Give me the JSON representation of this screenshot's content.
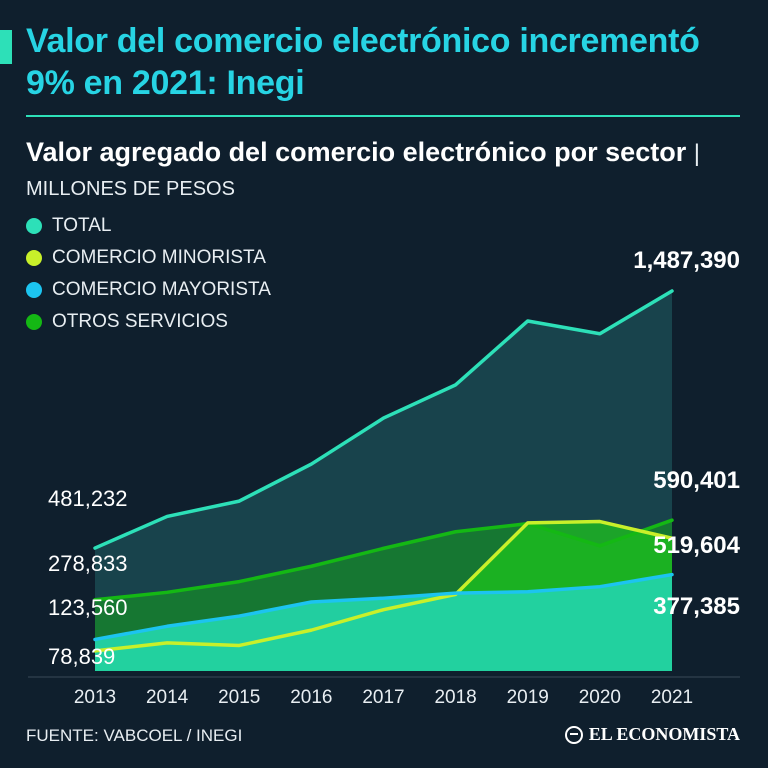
{
  "header": {
    "headline": "Valor del comercio electrónico incrementó 9% en 2021: Inegi",
    "subtitle_main": "Valor agregado del comercio electrónico por sector",
    "subtitle_sep": "|",
    "subtitle_units": "MILLONES DE PESOS"
  },
  "colors": {
    "background": "#0f1f2d",
    "total": "#2de0b8",
    "minorista": "#c8f02a",
    "mayorista": "#1cc4f0",
    "otros": "#14b814"
  },
  "chart_data": {
    "type": "area",
    "title": "Valor agregado del comercio electrónico por sector",
    "ylabel": "MILLONES DE PESOS",
    "x": [
      "2013",
      "2014",
      "2015",
      "2016",
      "2017",
      "2018",
      "2019",
      "2020",
      "2021"
    ],
    "ylim": [
      0,
      1600000
    ],
    "series": [
      {
        "name": "TOTAL",
        "key": "total",
        "values": [
          481232,
          605000,
          665000,
          810000,
          990000,
          1120000,
          1370000,
          1320000,
          1487390
        ]
      },
      {
        "name": "COMERCIO MINORISTA",
        "key": "minorista",
        "values": [
          78839,
          110000,
          100000,
          160000,
          240000,
          300000,
          580000,
          585000,
          519604
        ]
      },
      {
        "name": "COMERCIO MAYORISTA",
        "key": "mayorista",
        "values": [
          123560,
          175000,
          215000,
          270000,
          285000,
          305000,
          310000,
          330000,
          377385
        ]
      },
      {
        "name": "OTROS SERVICIOS",
        "key": "otros",
        "values": [
          278833,
          308000,
          350000,
          410000,
          480000,
          545000,
          577000,
          490000,
          590401
        ]
      }
    ],
    "data_labels": [
      {
        "text": "481,232",
        "side": "left",
        "series": "total"
      },
      {
        "text": "278,833",
        "side": "left",
        "series": "otros"
      },
      {
        "text": "123,560",
        "side": "left",
        "series": "mayorista"
      },
      {
        "text": "78,839",
        "side": "left",
        "series": "minorista"
      },
      {
        "text": "1,487,390",
        "side": "right",
        "series": "total"
      },
      {
        "text": "590,401",
        "side": "right",
        "series": "otros"
      },
      {
        "text": "519,604",
        "side": "right",
        "series": "minorista"
      },
      {
        "text": "377,385",
        "side": "right",
        "series": "mayorista"
      }
    ]
  },
  "footer": {
    "source": "FUENTE: VABCOEL / INEGI",
    "brand": "EL ECONOMISTA"
  }
}
